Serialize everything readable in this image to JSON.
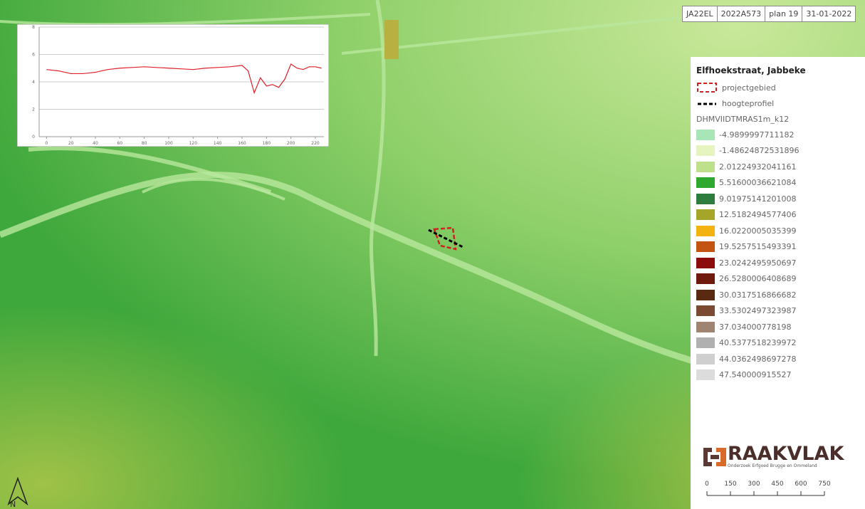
{
  "header": {
    "cells": [
      "JA22EL",
      "2022A573",
      "plan 19",
      "31-01-2022"
    ]
  },
  "legend": {
    "title": "Elfhoekstraat, Jabbeke",
    "project_area": "projectgebied",
    "profile_line": "hoogteprofiel",
    "layer": "DHMVIIDTMRAS1m_k12",
    "classes": [
      {
        "label": "-4.9899997711182",
        "color": "#a8e6b8"
      },
      {
        "label": "-1.48624872531896",
        "color": "#e6f5c0"
      },
      {
        "label": "2.01224932041161",
        "color": "#bfe08a"
      },
      {
        "label": "5.51600036621084",
        "color": "#2ea82e"
      },
      {
        "label": "9.01975141201008",
        "color": "#2e7d3e"
      },
      {
        "label": "12.5182494577406",
        "color": "#a5a52a"
      },
      {
        "label": "16.0220005035399",
        "color": "#f2b20f"
      },
      {
        "label": "19.5257515493391",
        "color": "#c45412"
      },
      {
        "label": "23.0242495950697",
        "color": "#8c0c0c"
      },
      {
        "label": "26.5280006408689",
        "color": "#6e1a0c"
      },
      {
        "label": "30.0317516866682",
        "color": "#5a2a10"
      },
      {
        "label": "33.5302497323987",
        "color": "#7a4a32"
      },
      {
        "label": "37.034000778198",
        "color": "#a08472"
      },
      {
        "label": "40.5377518239972",
        "color": "#b0b0b0"
      },
      {
        "label": "44.0362498697278",
        "color": "#cfcfcf"
      },
      {
        "label": "47.540000915527",
        "color": "#dcdcdc"
      }
    ]
  },
  "logo": {
    "name": "RAAKVLAK",
    "tagline": "Onderzoek Erfgoed Brugge en Ommeland"
  },
  "scale_bar": {
    "labels": [
      "0",
      "150",
      "300",
      "450",
      "600",
      "750"
    ]
  },
  "north_arrow": {
    "label": "N"
  },
  "chart_data": {
    "type": "line",
    "color": "#e0202a",
    "x": [
      0,
      10,
      20,
      30,
      40,
      50,
      60,
      70,
      80,
      90,
      100,
      110,
      120,
      130,
      140,
      150,
      160,
      165,
      170,
      175,
      180,
      185,
      190,
      195,
      200,
      205,
      210,
      215,
      220,
      225
    ],
    "values": [
      4.9,
      4.8,
      4.6,
      4.6,
      4.7,
      4.9,
      5.0,
      5.05,
      5.1,
      5.05,
      5.0,
      4.95,
      4.9,
      5.0,
      5.05,
      5.1,
      5.2,
      4.8,
      3.2,
      4.3,
      3.7,
      3.8,
      3.6,
      4.2,
      5.3,
      5.0,
      4.9,
      5.1,
      5.1,
      5.0
    ],
    "xlim": [
      -6,
      227
    ],
    "ylim": [
      0,
      8
    ],
    "xticks": [
      0,
      20,
      40,
      60,
      80,
      100,
      120,
      140,
      160,
      180,
      200,
      220
    ],
    "yticks": [
      0,
      2,
      4,
      6,
      8
    ],
    "grid": true
  }
}
